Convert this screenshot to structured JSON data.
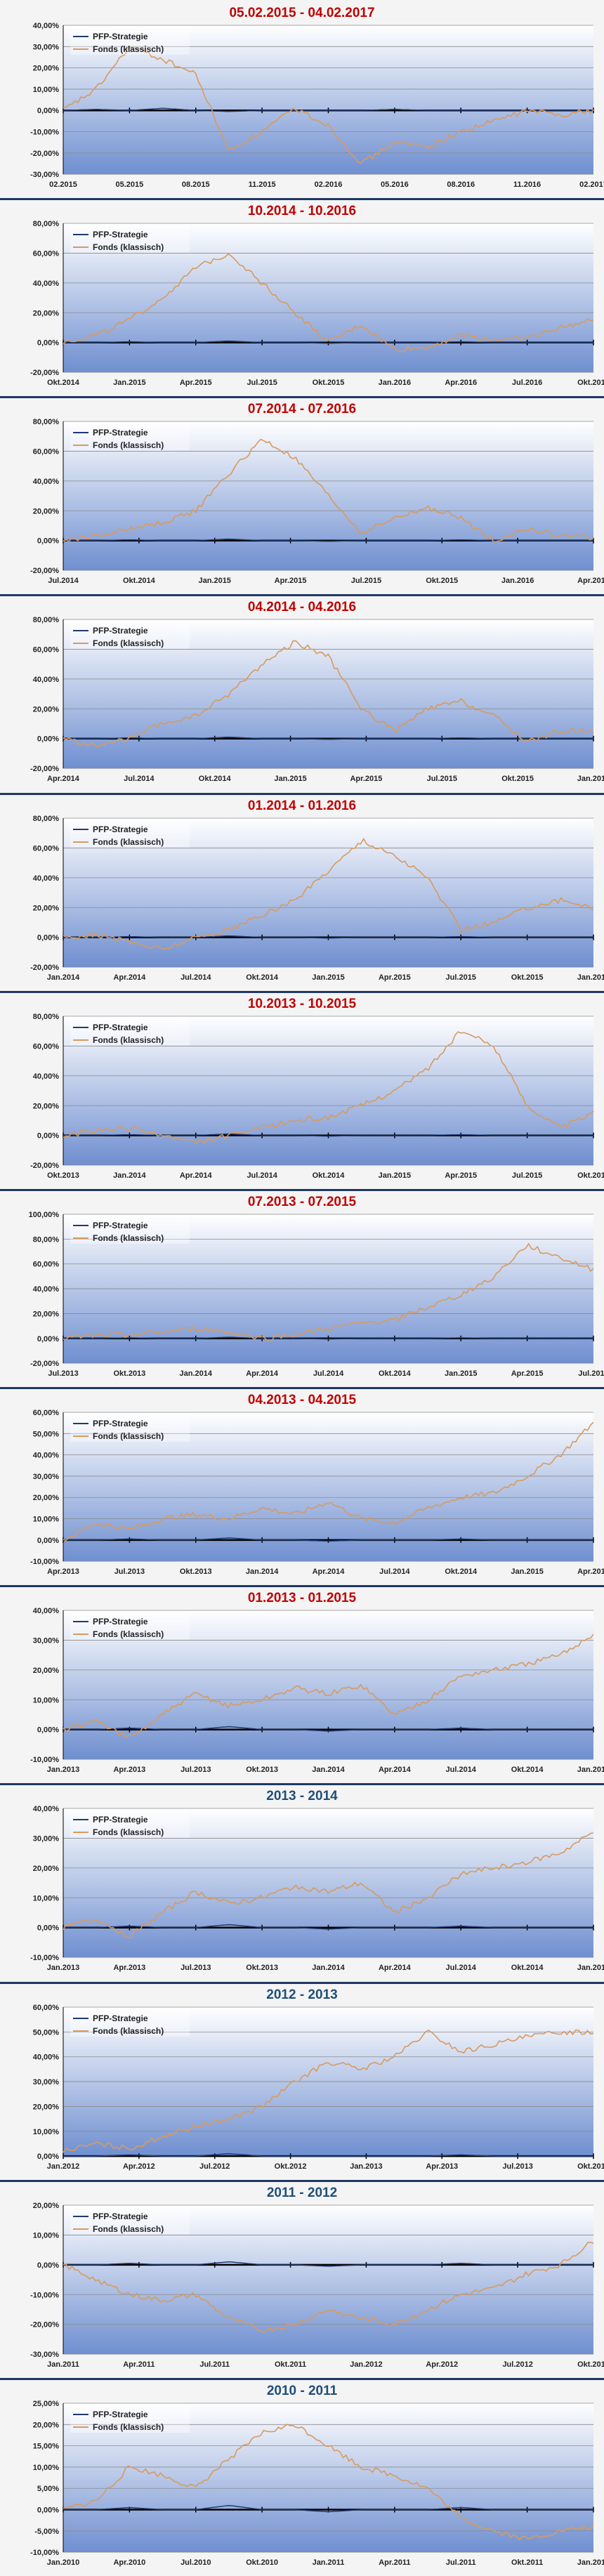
{
  "colors": {
    "pfp_strategie": "#1f3a6e",
    "fonds_klassisch": "#d89a5e",
    "plot_top": "#ffffff",
    "plot_bottom": "#6f8fd0",
    "title_red": "#c00000",
    "title_blue": "#1f4e79",
    "divider": "#1f3864"
  },
  "legend": [
    "PFP-Strategie",
    "Fonds (klassisch)"
  ],
  "chart_data": [
    {
      "type": "line",
      "title": "05.02.2015 - 04.02.2017",
      "title_color": "red",
      "ylim": [
        -30,
        40
      ],
      "ystep": 10,
      "xticks": [
        "02.2015",
        "05.2015",
        "08.2015",
        "11.2015",
        "02.2016",
        "05.2016",
        "08.2016",
        "11.2016",
        "02.2017"
      ],
      "series": [
        {
          "name": "PFP-Strategie",
          "values": [
            0,
            0.5,
            0,
            1,
            0,
            -0.5,
            0,
            0,
            0,
            0,
            0.5,
            0,
            0,
            0,
            0,
            0,
            0
          ]
        },
        {
          "name": "Fonds (klassisch)",
          "values": [
            0,
            10,
            30,
            24,
            17,
            -19,
            -10,
            1,
            -7,
            -25,
            -15,
            -17,
            -10,
            -5,
            0,
            -2,
            0
          ]
        }
      ],
      "legend_position": "top-left"
    },
    {
      "type": "line",
      "title": "10.2014 - 10.2016",
      "title_color": "red",
      "ylim": [
        -20,
        80
      ],
      "ystep": 20,
      "xticks": [
        "Okt.2014",
        "Jan.2015",
        "Apr.2015",
        "Jul.2015",
        "Okt.2015",
        "Jan.2016",
        "Apr.2016",
        "Jul.2016",
        "Okt.2016"
      ],
      "series": [
        {
          "name": "PFP-Strategie",
          "values": [
            0,
            0,
            0.5,
            0,
            0,
            1,
            0,
            0,
            -0.5,
            0,
            0,
            0,
            0.5,
            0,
            0,
            0,
            0
          ]
        },
        {
          "name": "Fonds (klassisch)",
          "values": [
            0,
            5,
            15,
            30,
            50,
            60,
            40,
            20,
            0,
            12,
            -5,
            -3,
            5,
            2,
            3,
            10,
            15
          ]
        }
      ],
      "legend_position": "top-left"
    },
    {
      "type": "line",
      "title": "07.2014 - 07.2016",
      "title_color": "red",
      "ylim": [
        -20,
        80
      ],
      "ystep": 20,
      "xticks": [
        "Jul.2014",
        "Okt.2014",
        "Jan.2015",
        "Apr.2015",
        "Jul.2015",
        "Okt.2015",
        "Jan.2016",
        "Apr.2016"
      ],
      "series": [
        {
          "name": "PFP-Strategie",
          "values": [
            0,
            0,
            0.5,
            0,
            0,
            1,
            0,
            0,
            -0.5,
            0,
            0,
            0,
            0.5,
            0,
            0,
            0,
            0
          ]
        },
        {
          "name": "Fonds (klassisch)",
          "values": [
            0,
            3,
            8,
            12,
            20,
            45,
            68,
            55,
            30,
            5,
            15,
            22,
            15,
            0,
            8,
            3,
            2
          ]
        }
      ],
      "legend_position": "top-left"
    },
    {
      "type": "line",
      "title": "04.2014 - 04.2016",
      "title_color": "red",
      "ylim": [
        -20,
        80
      ],
      "ystep": 20,
      "xticks": [
        "Apr.2014",
        "Jul.2014",
        "Okt.2014",
        "Jan.2015",
        "Apr.2015",
        "Jul.2015",
        "Okt.2015",
        "Jan.2016"
      ],
      "series": [
        {
          "name": "PFP-Strategie",
          "values": [
            0,
            0,
            0.5,
            0,
            0,
            1,
            0,
            0,
            -0.5,
            0,
            0,
            0,
            0.5,
            0,
            0,
            0,
            0
          ]
        },
        {
          "name": "Fonds (klassisch)",
          "values": [
            0,
            -5,
            0,
            10,
            15,
            30,
            50,
            65,
            55,
            20,
            5,
            20,
            25,
            15,
            -2,
            5,
            5
          ]
        }
      ],
      "legend_position": "top-left"
    },
    {
      "type": "line",
      "title": "01.2014 - 01.2016",
      "title_color": "red",
      "ylim": [
        -20,
        80
      ],
      "ystep": 20,
      "xticks": [
        "Jan.2014",
        "Apr.2014",
        "Jul.2014",
        "Okt.2014",
        "Jan.2015",
        "Apr.2015",
        "Jul.2015",
        "Okt.2015",
        "Jan.2016"
      ],
      "series": [
        {
          "name": "PFP-Strategie",
          "values": [
            0,
            0,
            0.5,
            0,
            0,
            1,
            0,
            0,
            -0.5,
            0,
            0,
            0,
            0.5,
            0,
            0,
            0,
            0
          ]
        },
        {
          "name": "Fonds (klassisch)",
          "values": [
            0,
            2,
            -3,
            -8,
            0,
            5,
            15,
            25,
            45,
            65,
            55,
            40,
            5,
            10,
            20,
            25,
            20
          ]
        }
      ],
      "legend_position": "top-left"
    },
    {
      "type": "line",
      "title": "10.2013 - 10.2015",
      "title_color": "red",
      "ylim": [
        -20,
        80
      ],
      "ystep": 20,
      "xticks": [
        "Okt.2013",
        "Jan.2014",
        "Apr.2014",
        "Jul.2014",
        "Okt.2014",
        "Jan.2015",
        "Apr.2015",
        "Jul.2015",
        "Okt.2015"
      ],
      "series": [
        {
          "name": "PFP-Strategie",
          "values": [
            0,
            0,
            0.5,
            0,
            0,
            1,
            0,
            0,
            -0.5,
            0,
            0,
            0,
            0.5,
            0,
            0,
            0,
            0
          ]
        },
        {
          "name": "Fonds (klassisch)",
          "values": [
            0,
            3,
            5,
            0,
            -5,
            0,
            5,
            10,
            12,
            20,
            30,
            45,
            70,
            60,
            20,
            5,
            15
          ]
        }
      ],
      "legend_position": "top-left"
    },
    {
      "type": "line",
      "title": "07.2013 - 07.2015",
      "title_color": "red",
      "ylim": [
        -20,
        100
      ],
      "ystep": 20,
      "xticks": [
        "Jul.2013",
        "Okt.2013",
        "Jan.2014",
        "Apr.2014",
        "Jul.2014",
        "Okt.2014",
        "Jan.2015",
        "Apr.2015",
        "Jul.2015"
      ],
      "series": [
        {
          "name": "PFP-Strategie",
          "values": [
            0,
            0,
            0.5,
            0,
            0,
            1,
            0,
            0,
            -0.5,
            0,
            0,
            0,
            0.5,
            0,
            0,
            0,
            0
          ]
        },
        {
          "name": "Fonds (klassisch)",
          "values": [
            0,
            2,
            3,
            5,
            8,
            5,
            0,
            3,
            8,
            12,
            15,
            25,
            35,
            50,
            75,
            65,
            55
          ]
        }
      ],
      "legend_position": "top-left"
    },
    {
      "type": "line",
      "title": "04.2013 - 04.2015",
      "title_color": "red",
      "ylim": [
        -10,
        60
      ],
      "ystep": 10,
      "xticks": [
        "Apr.2013",
        "Jul.2013",
        "Okt.2013",
        "Jan.2014",
        "Apr.2014",
        "Jul.2014",
        "Okt.2014",
        "Jan.2015",
        "Apr.2015"
      ],
      "series": [
        {
          "name": "PFP-Strategie",
          "values": [
            0,
            0,
            0.5,
            0,
            0,
            1,
            0,
            0,
            -0.5,
            0,
            0,
            0,
            0.5,
            0,
            0,
            0,
            0
          ]
        },
        {
          "name": "Fonds (klassisch)",
          "values": [
            0,
            8,
            5,
            10,
            12,
            10,
            15,
            12,
            18,
            10,
            8,
            15,
            20,
            22,
            30,
            40,
            55
          ]
        }
      ],
      "legend_position": "top-left"
    },
    {
      "type": "line",
      "title": "01.2013 - 01.2015",
      "title_color": "red",
      "ylim": [
        -10,
        40
      ],
      "ystep": 10,
      "xticks": [
        "Jan.2013",
        "Apr.2013",
        "Jul.2013",
        "Okt.2013",
        "Jan.2014",
        "Apr.2014",
        "Jul.2014",
        "Okt.2014",
        "Jan.2015"
      ],
      "series": [
        {
          "name": "PFP-Strategie",
          "values": [
            0,
            0,
            0.5,
            0,
            0,
            1,
            0,
            0,
            -0.5,
            0,
            0,
            0,
            0.5,
            0,
            0,
            0,
            0
          ]
        },
        {
          "name": "Fonds (klassisch)",
          "values": [
            0,
            3,
            -3,
            5,
            12,
            8,
            10,
            14,
            12,
            15,
            5,
            10,
            18,
            20,
            22,
            25,
            32
          ]
        }
      ],
      "legend_position": "top-left"
    },
    {
      "type": "line",
      "title": "2013 - 2014",
      "title_color": "blue",
      "ylim": [
        -10,
        40
      ],
      "ystep": 10,
      "xticks": [
        "Jan.2013",
        "Apr.2013",
        "Jul.2013",
        "Okt.2013",
        "Jan.2014",
        "Apr.2014",
        "Jul.2014",
        "Okt.2014",
        "Jan.2015"
      ],
      "series": [
        {
          "name": "PFP-Strategie",
          "values": [
            0,
            0,
            0.5,
            0,
            0,
            1,
            0,
            0,
            -0.5,
            0,
            0,
            0,
            0.5,
            0,
            0,
            0,
            0
          ]
        },
        {
          "name": "Fonds (klassisch)",
          "values": [
            0,
            3,
            -3,
            5,
            12,
            8,
            10,
            14,
            12,
            15,
            5,
            10,
            18,
            20,
            22,
            25,
            32
          ]
        }
      ],
      "legend_position": "top-left"
    },
    {
      "type": "line",
      "title": "2012 - 2013",
      "title_color": "blue",
      "ylim": [
        0,
        60
      ],
      "ystep": 10,
      "xticks": [
        "Jan.2012",
        "Apr.2012",
        "Jul.2012",
        "Okt.2012",
        "Jan.2013",
        "Apr.2013",
        "Jul.2013",
        "Okt.2013"
      ],
      "series": [
        {
          "name": "PFP-Strategie",
          "values": [
            0,
            0,
            0.5,
            0,
            0,
            1,
            0,
            0,
            -0.5,
            0,
            0,
            0,
            0.5,
            0,
            0,
            0,
            0
          ]
        },
        {
          "name": "Fonds (klassisch)",
          "values": [
            2,
            5,
            3,
            8,
            12,
            15,
            20,
            30,
            38,
            35,
            40,
            50,
            42,
            45,
            48,
            50,
            50
          ]
        }
      ],
      "legend_position": "top-left"
    },
    {
      "type": "line",
      "title": "2011 - 2012",
      "title_color": "blue",
      "ylim": [
        -30,
        20
      ],
      "ystep": 10,
      "xticks": [
        "Jan.2011",
        "Apr.2011",
        "Jul.2011",
        "Okt.2011",
        "Jan.2012",
        "Apr.2012",
        "Jul.2012",
        "Okt.2012"
      ],
      "series": [
        {
          "name": "PFP-Strategie",
          "values": [
            0,
            0,
            0.5,
            0,
            0,
            1,
            0,
            0,
            -0.5,
            0,
            0,
            0,
            0.5,
            0,
            0,
            0,
            0
          ]
        },
        {
          "name": "Fonds (klassisch)",
          "values": [
            0,
            -5,
            -10,
            -12,
            -10,
            -18,
            -22,
            -20,
            -15,
            -18,
            -20,
            -15,
            -10,
            -8,
            -3,
            0,
            8
          ]
        }
      ],
      "legend_position": "top-left"
    },
    {
      "type": "line",
      "title": "2010 - 2011",
      "title_color": "blue",
      "ylim": [
        -10,
        25
      ],
      "ystep": 5,
      "xticks": [
        "Jan.2010",
        "Apr.2010",
        "Jul.2010",
        "Okt.2010",
        "Jan.2011",
        "Apr.2011",
        "Jul.2011",
        "Okt.2011",
        "Jan.2012"
      ],
      "series": [
        {
          "name": "PFP-Strategie",
          "values": [
            0,
            0,
            0.5,
            0,
            0,
            1,
            0,
            0,
            -0.5,
            0,
            0,
            0,
            0.5,
            0,
            0,
            0,
            0
          ]
        },
        {
          "name": "Fonds (klassisch)",
          "values": [
            0,
            2,
            10,
            8,
            5,
            12,
            18,
            20,
            15,
            10,
            8,
            5,
            -2,
            -5,
            -7,
            -5,
            -4
          ]
        }
      ],
      "legend_position": "top-left"
    }
  ]
}
